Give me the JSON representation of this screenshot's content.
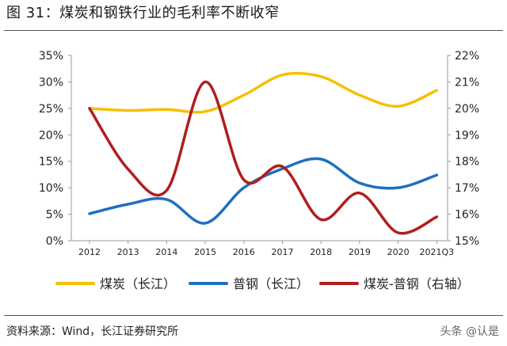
{
  "header": {
    "title": "图 31：煤炭和钢铁行业的毛利率不断收窄"
  },
  "footer": {
    "source": "资料来源：Wind，长江证券研究所",
    "watermark": "头条 @认是"
  },
  "colors": {
    "coal": "#F5C000",
    "steel": "#1F6FBF",
    "spread": "#B01E1E",
    "axis": "#999999"
  },
  "chart_data": {
    "type": "line",
    "categories": [
      "2012",
      "2013",
      "2014",
      "2015",
      "2016",
      "2017",
      "2018",
      "2019",
      "2020",
      "2021Q3"
    ],
    "y_left": {
      "ticks": [
        "0%",
        "5%",
        "10%",
        "15%",
        "20%",
        "25%",
        "30%",
        "35%"
      ],
      "lim": [
        0,
        35
      ]
    },
    "y_right": {
      "ticks": [
        "15%",
        "16%",
        "17%",
        "18%",
        "19%",
        "20%",
        "21%",
        "22%"
      ],
      "lim": [
        15,
        22
      ]
    },
    "series": [
      {
        "name": "煤炭（长江）",
        "axis": "left",
        "color": "#F5C000",
        "values": [
          25.0,
          24.6,
          24.8,
          24.4,
          27.5,
          31.3,
          31.0,
          27.5,
          25.4,
          28.4
        ]
      },
      {
        "name": "普钢（长江）",
        "axis": "left",
        "color": "#1F6FBF",
        "values": [
          5.1,
          6.9,
          7.8,
          3.3,
          10.0,
          13.6,
          15.4,
          10.9,
          10.0,
          12.4
        ]
      },
      {
        "name": "煤炭-普钢（右轴）",
        "axis": "right",
        "color": "#B01E1E",
        "values": [
          20.0,
          17.7,
          16.9,
          21.0,
          17.3,
          17.8,
          15.8,
          16.8,
          15.3,
          15.9
        ]
      }
    ],
    "legend": "bottom",
    "grid": false
  }
}
